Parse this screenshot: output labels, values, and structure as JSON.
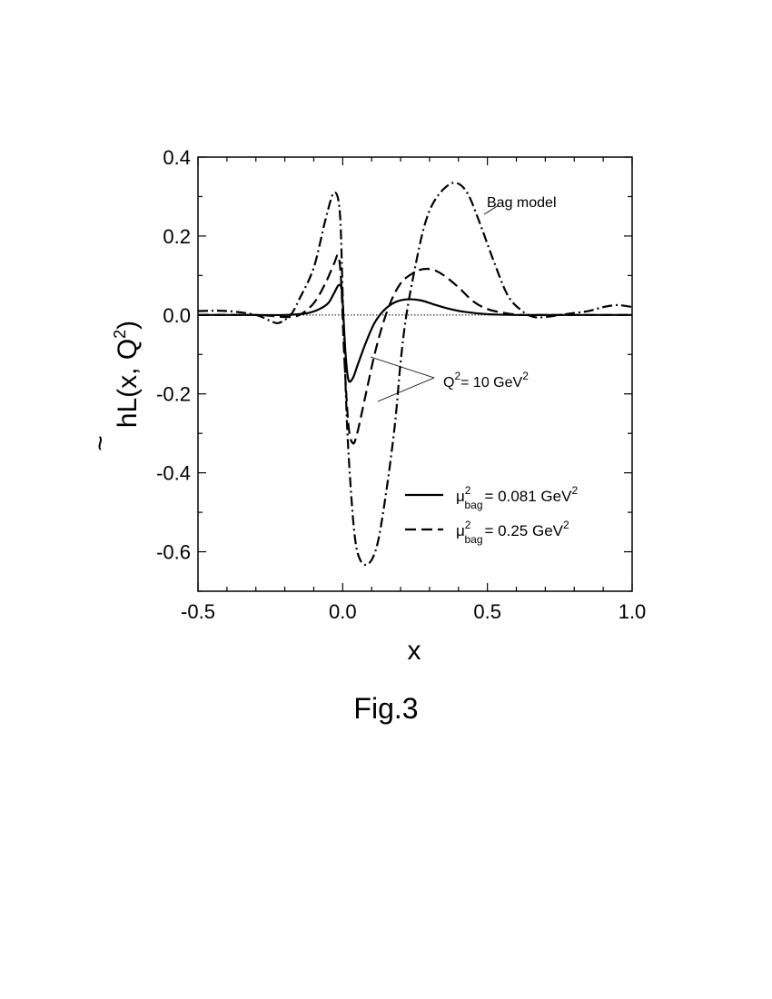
{
  "figure": {
    "caption": "Fig.3"
  },
  "chart_data": {
    "type": "line",
    "xlabel": "x",
    "ylabel_main": "hL(x, Q",
    "ylabel_sup": "2",
    "ylabel_close": ")",
    "ylabel_tilde": "~",
    "xlim": [
      -0.5,
      1.0
    ],
    "ylim": [
      -0.7,
      0.4
    ],
    "xticks": [
      -0.5,
      0.0,
      0.5,
      1.0
    ],
    "xtick_labels": [
      "-0.5",
      "0.0",
      "0.5",
      "1.0"
    ],
    "yticks": [
      0.4,
      0.2,
      0.0,
      -0.2,
      -0.4,
      -0.6
    ],
    "ytick_labels": [
      "0.4",
      "0.2",
      "0.0",
      "-0.2",
      "-0.4",
      "-0.6"
    ],
    "grid": false,
    "zero_line": true,
    "series": [
      {
        "name": "Bag model",
        "style": "dashdot",
        "x": [
          -0.5,
          -0.4,
          -0.3,
          -0.25,
          -0.22,
          -0.18,
          -0.15,
          -0.1,
          -0.06,
          -0.03,
          -0.01,
          0.0,
          0.01,
          0.02,
          0.04,
          0.06,
          0.09,
          0.12,
          0.15,
          0.18,
          0.2,
          0.22,
          0.25,
          0.28,
          0.31,
          0.35,
          0.39,
          0.43,
          0.47,
          0.52,
          0.57,
          0.62,
          0.66,
          0.7,
          0.75,
          0.8,
          0.85,
          0.9,
          0.95,
          1.0
        ],
        "y": [
          0.01,
          0.01,
          0.0,
          -0.015,
          -0.02,
          0.0,
          0.04,
          0.12,
          0.24,
          0.31,
          0.26,
          0.05,
          -0.18,
          -0.35,
          -0.55,
          -0.62,
          -0.63,
          -0.58,
          -0.45,
          -0.28,
          -0.12,
          0.0,
          0.12,
          0.22,
          0.28,
          0.32,
          0.335,
          0.31,
          0.24,
          0.14,
          0.05,
          0.01,
          -0.005,
          -0.005,
          0.0,
          0.005,
          0.01,
          0.02,
          0.025,
          0.02
        ]
      },
      {
        "name": "μ²bag = 0.25 GeV²",
        "style": "dashed",
        "x": [
          -0.5,
          -0.3,
          -0.2,
          -0.15,
          -0.1,
          -0.06,
          -0.03,
          -0.015,
          -0.005,
          0.005,
          0.02,
          0.035,
          0.05,
          0.08,
          0.11,
          0.14,
          0.17,
          0.2,
          0.23,
          0.27,
          0.31,
          0.35,
          0.4,
          0.45,
          0.5,
          0.56,
          0.62,
          0.7,
          0.8,
          1.0
        ],
        "y": [
          0.0,
          0.0,
          -0.005,
          0.0,
          0.03,
          0.08,
          0.13,
          0.15,
          0.08,
          -0.1,
          -0.28,
          -0.325,
          -0.3,
          -0.2,
          -0.1,
          -0.02,
          0.04,
          0.08,
          0.1,
          0.115,
          0.115,
          0.1,
          0.07,
          0.035,
          0.015,
          0.005,
          0.0,
          0.0,
          0.0,
          0.0
        ]
      },
      {
        "name": "μ²bag = 0.081 GeV²",
        "style": "solid",
        "x": [
          -0.5,
          -0.3,
          -0.2,
          -0.12,
          -0.08,
          -0.05,
          -0.03,
          -0.015,
          -0.005,
          0.0,
          0.01,
          0.02,
          0.035,
          0.05,
          0.08,
          0.11,
          0.14,
          0.17,
          0.2,
          0.23,
          0.27,
          0.31,
          0.36,
          0.42,
          0.5,
          0.6,
          0.7,
          1.0
        ],
        "y": [
          0.0,
          0.0,
          0.0,
          0.005,
          0.015,
          0.03,
          0.055,
          0.075,
          0.07,
          0.03,
          -0.1,
          -0.165,
          -0.16,
          -0.13,
          -0.07,
          -0.02,
          0.01,
          0.028,
          0.037,
          0.04,
          0.037,
          0.028,
          0.017,
          0.008,
          0.002,
          0.0,
          0.0,
          0.0
        ]
      }
    ],
    "annotations": {
      "bag_model": "Bag  model",
      "q2_prefix": "Q",
      "q2_sup": "2",
      "q2_mid": "= 10 GeV",
      "q2_sup2": "2"
    },
    "legend": {
      "placement": "lower-right",
      "entries": [
        {
          "mu": "μ",
          "sup": "2",
          "sub": "bag",
          "text": "= 0.081  GeV",
          "unit_sup": "2",
          "style": "solid"
        },
        {
          "mu": "μ",
          "sup": "2",
          "sub": "bag",
          "text": "=  0.25   GeV",
          "unit_sup": "2",
          "style": "dashed"
        }
      ]
    }
  }
}
